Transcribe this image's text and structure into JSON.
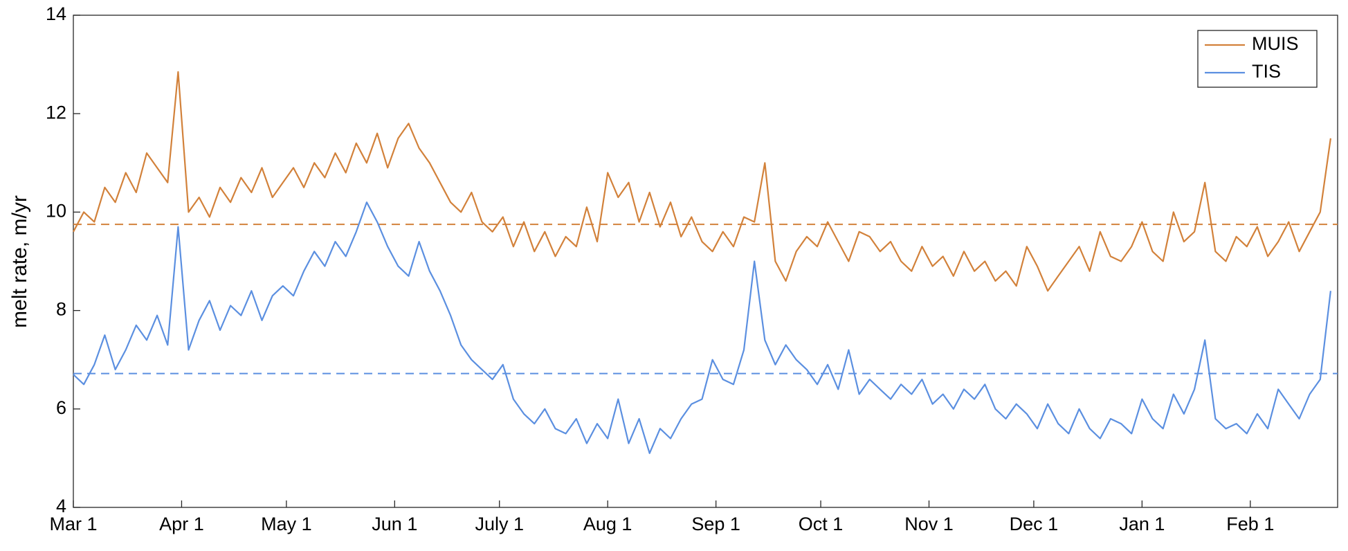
{
  "chart_data": {
    "type": "line",
    "y_label": "melt rate, m/yr",
    "x": [
      0,
      3,
      6,
      9,
      12,
      15,
      18,
      21,
      24,
      27,
      30,
      33,
      36,
      39,
      42,
      45,
      48,
      51,
      54,
      57,
      60,
      63,
      66,
      69,
      72,
      75,
      78,
      81,
      84,
      87,
      90,
      93,
      96,
      99,
      102,
      105,
      108,
      111,
      114,
      117,
      120,
      123,
      126,
      129,
      132,
      135,
      138,
      141,
      144,
      147,
      150,
      153,
      156,
      159,
      162,
      165,
      168,
      171,
      174,
      177,
      180,
      183,
      186,
      189,
      192,
      195,
      198,
      201,
      204,
      207,
      210,
      213,
      216,
      219,
      222,
      225,
      228,
      231,
      234,
      237,
      240,
      243,
      246,
      249,
      252,
      255,
      258,
      261,
      264,
      267,
      270,
      273,
      276,
      279,
      282,
      285,
      288,
      291,
      294,
      297,
      300,
      303,
      306,
      309,
      312,
      315,
      318,
      321,
      324,
      327,
      330,
      333,
      336,
      339,
      342,
      345,
      348,
      351,
      354,
      357,
      360
    ],
    "series": [
      {
        "name": "MUIS",
        "color": "#d2813a",
        "mean": 9.75,
        "values": [
          9.6,
          10.0,
          9.8,
          10.5,
          10.2,
          10.8,
          10.4,
          11.2,
          10.9,
          10.6,
          12.85,
          10.0,
          10.3,
          9.9,
          10.5,
          10.2,
          10.7,
          10.4,
          10.9,
          10.3,
          10.6,
          10.9,
          10.5,
          11.0,
          10.7,
          11.2,
          10.8,
          11.4,
          11.0,
          11.6,
          10.9,
          11.5,
          11.8,
          11.3,
          11.0,
          10.6,
          10.2,
          10.0,
          10.4,
          9.8,
          9.6,
          9.9,
          9.3,
          9.8,
          9.2,
          9.6,
          9.1,
          9.5,
          9.3,
          10.1,
          9.4,
          10.8,
          10.3,
          10.6,
          9.8,
          10.4,
          9.7,
          10.2,
          9.5,
          9.9,
          9.4,
          9.2,
          9.6,
          9.3,
          9.9,
          9.8,
          11.0,
          9.0,
          8.6,
          9.2,
          9.5,
          9.3,
          9.8,
          9.4,
          9.0,
          9.6,
          9.5,
          9.2,
          9.4,
          9.0,
          8.8,
          9.3,
          8.9,
          9.1,
          8.7,
          9.2,
          8.8,
          9.0,
          8.6,
          8.8,
          8.5,
          9.3,
          8.9,
          8.4,
          8.7,
          9.0,
          9.3,
          8.8,
          9.6,
          9.1,
          9.0,
          9.3,
          9.8,
          9.2,
          9.0,
          10.0,
          9.4,
          9.6,
          10.6,
          9.2,
          9.0,
          9.5,
          9.3,
          9.7,
          9.1,
          9.4,
          9.8,
          9.2,
          9.6,
          10.0,
          11.5
        ]
      },
      {
        "name": "TIS",
        "color": "#5b8fe0",
        "mean": 6.72,
        "values": [
          6.7,
          6.5,
          6.9,
          7.5,
          6.8,
          7.2,
          7.7,
          7.4,
          7.9,
          7.3,
          9.7,
          7.2,
          7.8,
          8.2,
          7.6,
          8.1,
          7.9,
          8.4,
          7.8,
          8.3,
          8.5,
          8.3,
          8.8,
          9.2,
          8.9,
          9.4,
          9.1,
          9.6,
          10.2,
          9.8,
          9.3,
          8.9,
          8.7,
          9.4,
          8.8,
          8.4,
          7.9,
          7.3,
          7.0,
          6.8,
          6.6,
          6.9,
          6.2,
          5.9,
          5.7,
          6.0,
          5.6,
          5.5,
          5.8,
          5.3,
          5.7,
          5.4,
          6.2,
          5.3,
          5.8,
          5.1,
          5.6,
          5.4,
          5.8,
          6.1,
          6.2,
          7.0,
          6.6,
          6.5,
          7.2,
          9.0,
          7.4,
          6.9,
          7.3,
          7.0,
          6.8,
          6.5,
          6.9,
          6.4,
          7.2,
          6.3,
          6.6,
          6.4,
          6.2,
          6.5,
          6.3,
          6.6,
          6.1,
          6.3,
          6.0,
          6.4,
          6.2,
          6.5,
          6.0,
          5.8,
          6.1,
          5.9,
          5.6,
          6.1,
          5.7,
          5.5,
          6.0,
          5.6,
          5.4,
          5.8,
          5.7,
          5.5,
          6.2,
          5.8,
          5.6,
          6.3,
          5.9,
          6.4,
          7.4,
          5.8,
          5.6,
          5.7,
          5.5,
          5.9,
          5.6,
          6.4,
          6.1,
          5.8,
          6.3,
          6.6,
          8.4
        ]
      }
    ],
    "xlim": [
      0,
      362
    ],
    "xticks": [
      {
        "value": 0,
        "label": "Mar 1"
      },
      {
        "value": 31,
        "label": "Apr 1"
      },
      {
        "value": 61,
        "label": "May 1"
      },
      {
        "value": 92,
        "label": "Jun 1"
      },
      {
        "value": 122,
        "label": "July 1"
      },
      {
        "value": 153,
        "label": "Aug 1"
      },
      {
        "value": 184,
        "label": "Sep 1"
      },
      {
        "value": 214,
        "label": "Oct 1"
      },
      {
        "value": 245,
        "label": "Nov 1"
      },
      {
        "value": 275,
        "label": "Dec 1"
      },
      {
        "value": 306,
        "label": "Jan 1"
      },
      {
        "value": 337,
        "label": "Feb 1"
      }
    ],
    "ylim": [
      4,
      14
    ],
    "yticks": [
      4,
      6,
      8,
      10,
      12,
      14
    ],
    "grid": false,
    "legend": "upper-right"
  }
}
